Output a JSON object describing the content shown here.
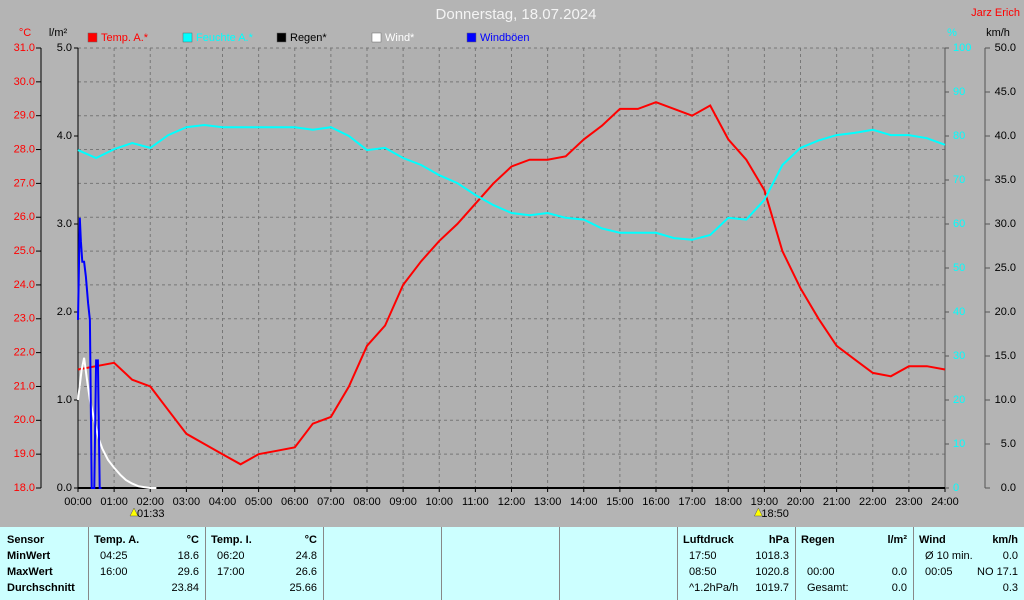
{
  "chart_data": {
    "type": "line",
    "title": "Donnerstag, 18.07.2024",
    "author": "Jarz Erich",
    "ylabel": "°C",
    "y2label": "%",
    "y3label": "l/m²",
    "y4label": "km/h",
    "xlim": [
      0,
      24
    ],
    "xticks": [
      {
        "value": 0,
        "label": "00:00"
      },
      {
        "value": 1,
        "label": "01:00"
      },
      {
        "value": 2,
        "label": "02:00"
      },
      {
        "value": 3,
        "label": "03:00"
      },
      {
        "value": 4,
        "label": "04:00"
      },
      {
        "value": 5,
        "label": "05:00"
      },
      {
        "value": 6,
        "label": "06:00"
      },
      {
        "value": 7,
        "label": "07:00"
      },
      {
        "value": 8,
        "label": "08:00"
      },
      {
        "value": 9,
        "label": "09:00"
      },
      {
        "value": 10,
        "label": "10:00"
      },
      {
        "value": 11,
        "label": "11:00"
      },
      {
        "value": 12,
        "label": "12:00"
      },
      {
        "value": 13,
        "label": "13:00"
      },
      {
        "value": 14,
        "label": "14:00"
      },
      {
        "value": 15,
        "label": "15:00"
      },
      {
        "value": 16,
        "label": "16:00"
      },
      {
        "value": 17,
        "label": "17:00"
      },
      {
        "value": 18,
        "label": "18:00"
      },
      {
        "value": 19,
        "label": "19:00"
      },
      {
        "value": 20,
        "label": "20:00"
      },
      {
        "value": 21,
        "label": "21:00"
      },
      {
        "value": 22,
        "label": "22:00"
      },
      {
        "value": 23,
        "label": "23:00"
      },
      {
        "value": 24,
        "label": "24:00"
      }
    ],
    "ylim": [
      18,
      31
    ],
    "yticks": [
      {
        "value": 18,
        "label": "18.0"
      },
      {
        "value": 19,
        "label": "19.0"
      },
      {
        "value": 20,
        "label": "20.0"
      },
      {
        "value": 21,
        "label": "21.0"
      },
      {
        "value": 22,
        "label": "22.0"
      },
      {
        "value": 23,
        "label": "23.0"
      },
      {
        "value": 24,
        "label": "24.0"
      },
      {
        "value": 25,
        "label": "25.0"
      },
      {
        "value": 26,
        "label": "26.0"
      },
      {
        "value": 27,
        "label": "27.0"
      },
      {
        "value": 28,
        "label": "28.0"
      },
      {
        "value": 29,
        "label": "29.0"
      },
      {
        "value": 30,
        "label": "30.0"
      },
      {
        "value": 31,
        "label": "31.0"
      }
    ],
    "y2lim": [
      0,
      100
    ],
    "y2ticks": [
      0,
      10,
      20,
      30,
      40,
      50,
      60,
      70,
      80,
      90,
      100
    ],
    "y3lim": [
      0,
      5
    ],
    "y3ticks": [
      {
        "value": 0,
        "label": "0.0"
      },
      {
        "value": 1,
        "label": "1.0"
      },
      {
        "value": 2,
        "label": "2.0"
      },
      {
        "value": 3,
        "label": "3.0"
      },
      {
        "value": 4,
        "label": "4.0"
      },
      {
        "value": 5,
        "label": "5.0"
      }
    ],
    "y4lim": [
      0,
      50
    ],
    "y4ticks": [
      {
        "value": 0,
        "label": "0.0"
      },
      {
        "value": 5,
        "label": "5.0"
      },
      {
        "value": 10,
        "label": "10.0"
      },
      {
        "value": 15,
        "label": "15.0"
      },
      {
        "value": 20,
        "label": "20.0"
      },
      {
        "value": 25,
        "label": "25.0"
      },
      {
        "value": 30,
        "label": "30.0"
      },
      {
        "value": 35,
        "label": "35.0"
      },
      {
        "value": 40,
        "label": "40.0"
      },
      {
        "value": 45,
        "label": "45.0"
      },
      {
        "value": 50,
        "label": "50.0"
      }
    ],
    "grid": true,
    "x": [
      0,
      0.5,
      1,
      1.5,
      2,
      2.5,
      3,
      3.5,
      4,
      4.5,
      5,
      5.5,
      6,
      6.5,
      7,
      7.5,
      8,
      8.5,
      9,
      9.5,
      10,
      10.5,
      11,
      11.5,
      12,
      12.5,
      13,
      13.5,
      14,
      14.5,
      15,
      15.5,
      16,
      16.5,
      17,
      17.5,
      18,
      18.5,
      19,
      19.5,
      20,
      20.5,
      21,
      21.5,
      22,
      22.5,
      23,
      23.5,
      24
    ],
    "series": [
      {
        "name": "Temp. A.*",
        "color": "#ff0000",
        "axis": "y",
        "values": [
          21.5,
          21.6,
          21.7,
          21.2,
          21.0,
          20.3,
          19.6,
          19.3,
          19.0,
          18.7,
          19.0,
          19.1,
          19.2,
          19.9,
          20.1,
          21.0,
          22.2,
          22.8,
          24.0,
          24.7,
          25.3,
          25.8,
          26.4,
          27.0,
          27.5,
          27.7,
          27.7,
          27.8,
          28.3,
          28.7,
          29.2,
          29.2,
          29.4,
          29.2,
          29.0,
          29.3,
          28.3,
          27.7,
          26.8,
          25.0,
          23.9,
          23.0,
          22.2,
          21.8,
          21.4,
          21.3,
          21.6,
          21.6,
          21.5
        ]
      },
      {
        "name": "Feuchte A.*",
        "color": "#00ffff",
        "axis": "y2",
        "values": [
          76.8,
          75,
          77,
          78.4,
          77.3,
          80.2,
          82,
          82.5,
          82,
          82,
          82,
          82,
          82,
          81.4,
          82,
          80,
          76.8,
          77.3,
          75,
          73.4,
          71.1,
          69.3,
          66.6,
          64.3,
          62.5,
          62,
          62.5,
          61.4,
          61,
          59,
          58,
          58,
          58,
          56.8,
          56.4,
          57.5,
          61.4,
          61,
          65.5,
          73.4,
          77.3,
          79,
          80.2,
          80.7,
          81.4,
          80.2,
          80.2,
          79.5,
          78
        ]
      },
      {
        "name": "Regen*",
        "color": "#000000",
        "axis": "y3",
        "x": [
          0,
          24
        ],
        "values": [
          0,
          0
        ]
      },
      {
        "name": "Wind*",
        "color": "#ffffff",
        "axis": "y4",
        "x": [
          0,
          0.1,
          0.17,
          0.25,
          0.33,
          0.42,
          0.5,
          0.58,
          0.67,
          0.83,
          1,
          1.17,
          1.33,
          1.5,
          1.67,
          1.83,
          2,
          2.17
        ],
        "values": [
          10.0,
          13.4,
          14.8,
          12.3,
          10.0,
          8.3,
          6.8,
          5.5,
          4.5,
          3.2,
          2.3,
          1.5,
          0.9,
          0.5,
          0.2,
          0.1,
          0,
          0
        ]
      },
      {
        "name": "Windböen",
        "color": "#0000ff",
        "axis": "y4",
        "x": [
          0,
          0.05,
          0.08,
          0.12,
          0.17,
          0.22,
          0.28,
          0.33,
          0.38,
          0.42,
          0.45,
          0.5,
          0.55,
          0.6,
          0.65
        ],
        "values": [
          19.1,
          30.7,
          28,
          25.7,
          25.7,
          24,
          21,
          19.1,
          0,
          0,
          0,
          14.5,
          14.5,
          0,
          0
        ]
      }
    ],
    "annotations": [
      {
        "x": 1.55,
        "label": "01:33"
      },
      {
        "x": 18.8333,
        "label": "18:50"
      }
    ]
  },
  "table": {
    "row_labels": [
      "Sensor",
      "MinWert",
      "MaxWert",
      "Durchschnitt"
    ],
    "sections": [
      {
        "title": "Temp. A.",
        "unit": "°C",
        "cells": [
          [
            "04:25",
            "18.6"
          ],
          [
            "16:00",
            "29.6"
          ],
          [
            null,
            "23.84"
          ]
        ]
      },
      {
        "title": "Temp. I.",
        "unit": "°C",
        "cells": [
          [
            "06:20",
            "24.8"
          ],
          [
            "17:00",
            "26.6"
          ],
          [
            null,
            "25.66"
          ]
        ]
      },
      {
        "title": "Luftdruck",
        "unit": "hPa",
        "cells": [
          [
            "17:50",
            "1018.3"
          ],
          [
            "08:50",
            "1020.8"
          ],
          [
            "^1.2hPa/h",
            "1019.7"
          ]
        ]
      },
      {
        "title": "Regen",
        "unit": "l/m²",
        "cells": [
          [
            null,
            null
          ],
          [
            "00:00",
            "0.0"
          ],
          [
            "Gesamt:",
            "0.0"
          ]
        ]
      },
      {
        "title": "Wind",
        "unit": "km/h",
        "cells": [
          [
            "Ø 10 min.",
            "0.0"
          ],
          [
            "00:05",
            "NO 17.1"
          ],
          [
            null,
            "0.3"
          ]
        ]
      }
    ]
  }
}
